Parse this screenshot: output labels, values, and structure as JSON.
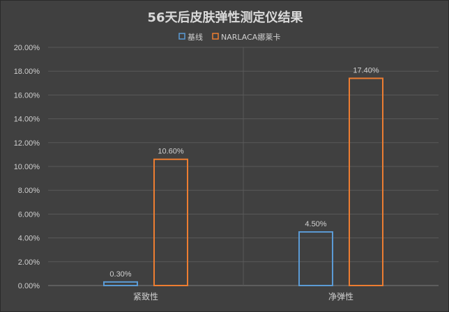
{
  "chart_data": {
    "type": "bar",
    "title": "56天后皮肤弹性测定仪结果",
    "categories": [
      "紧致性",
      "净弹性"
    ],
    "series": [
      {
        "name": "基线",
        "values": [
          0.3,
          4.5
        ],
        "labels": [
          "0.30%",
          "4.50%"
        ],
        "color": "#5b9bd5"
      },
      {
        "name": "NARLACA娜莱卡",
        "values": [
          10.6,
          17.4
        ],
        "labels": [
          "10.60%",
          "17.40%"
        ],
        "color": "#ed7d31"
      }
    ],
    "ylim": [
      0,
      20
    ],
    "yticks": [
      "0.00%",
      "2.00%",
      "4.00%",
      "6.00%",
      "8.00%",
      "10.00%",
      "12.00%",
      "14.00%",
      "16.00%",
      "18.00%",
      "20.00%"
    ],
    "xlabel": "",
    "ylabel": "",
    "legend_position": "top",
    "grid": true
  }
}
